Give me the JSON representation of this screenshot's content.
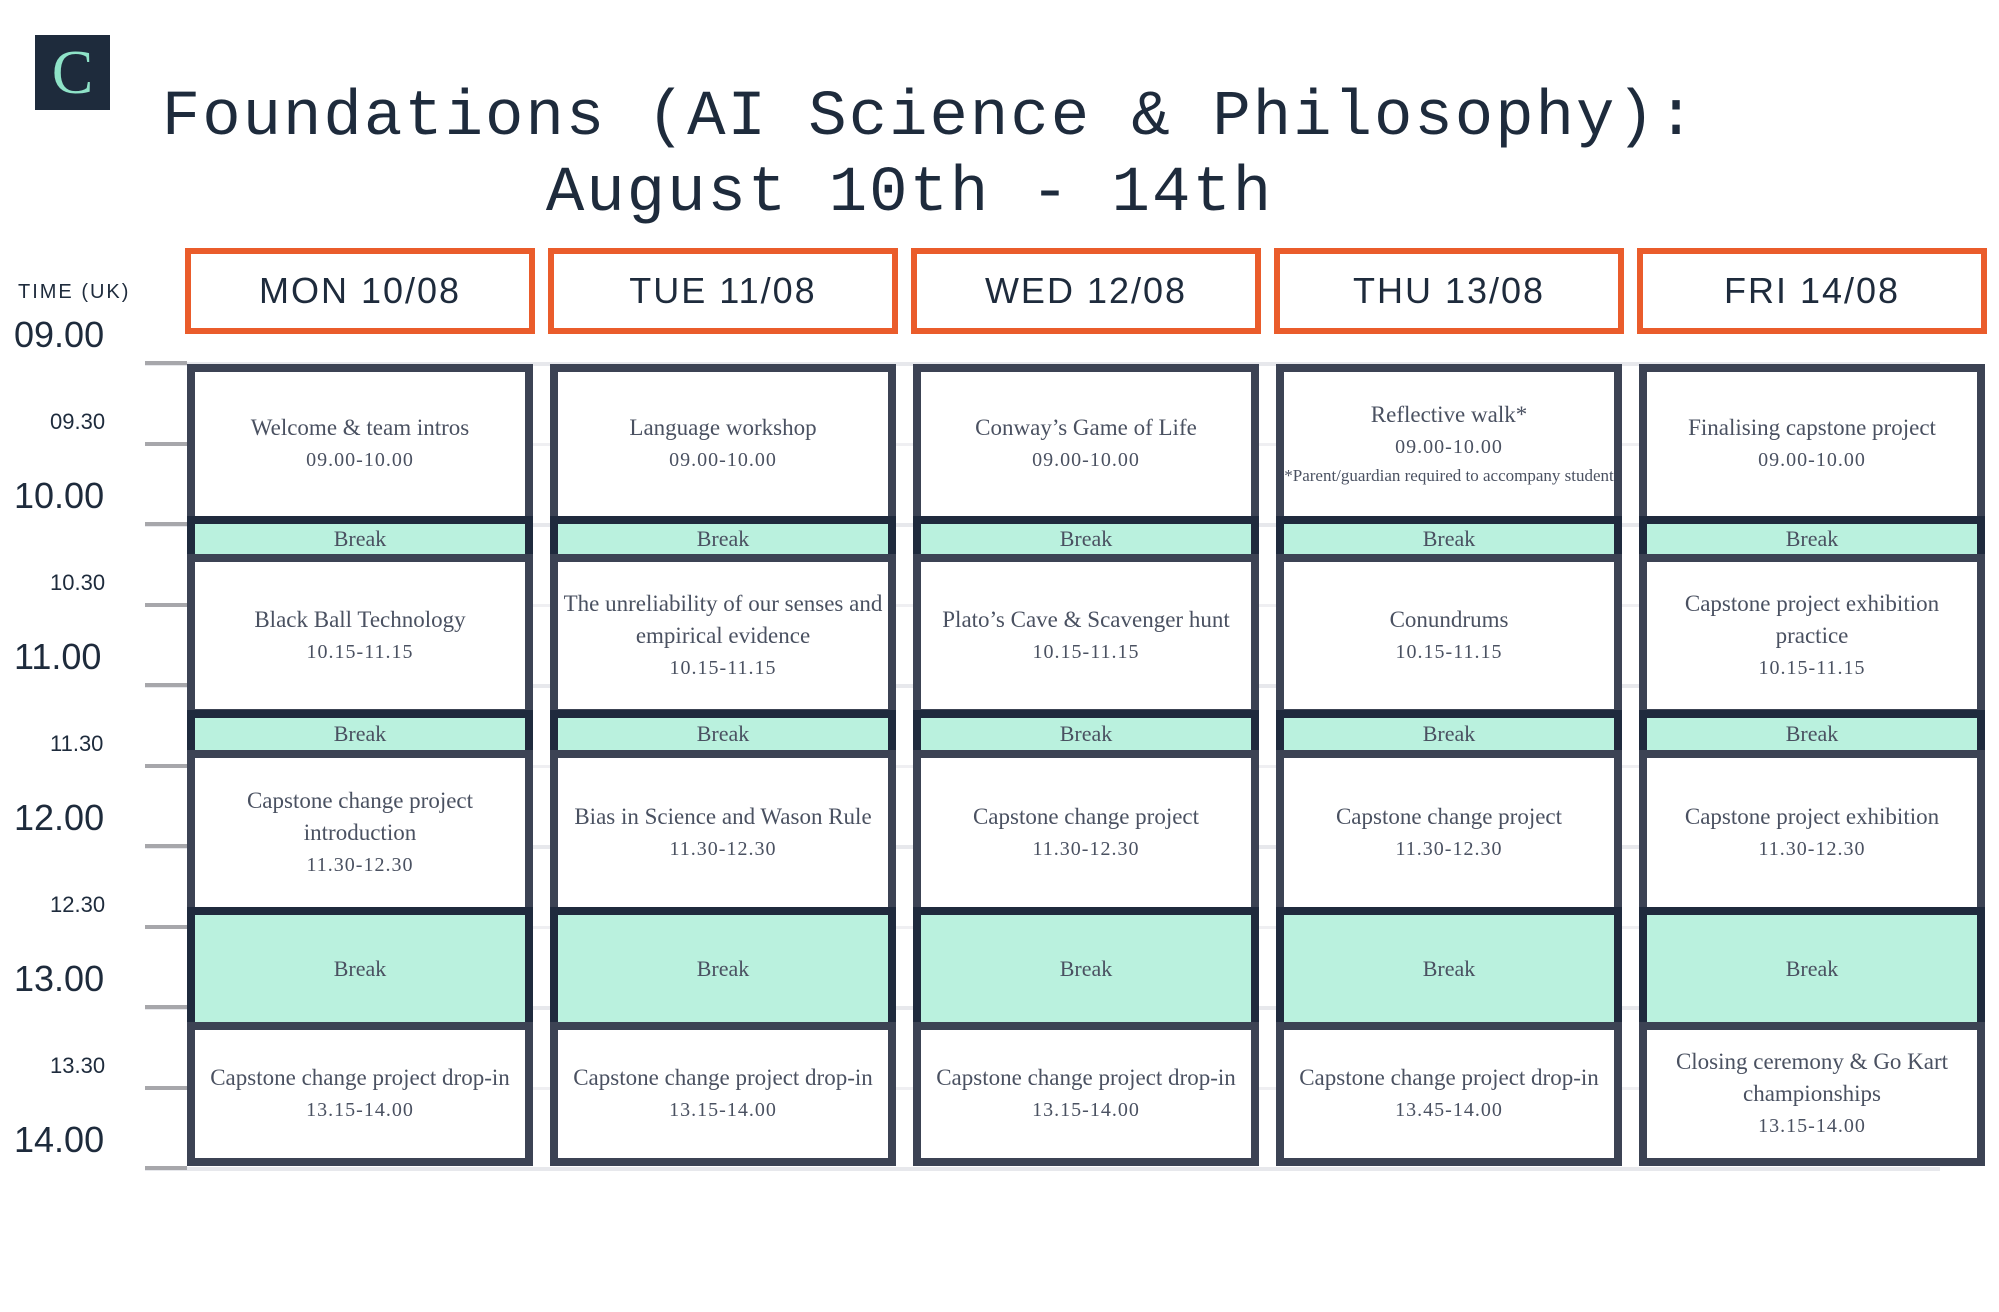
{
  "logo": {
    "letter": "C"
  },
  "title": {
    "line1": "Foundations (AI Science & Philosophy):",
    "line2": "August 10th - 14th"
  },
  "time_header": "TIME (UK)",
  "time_labels": [
    "09.00",
    "09.30",
    "10.00",
    "10.30",
    "11.00",
    "11.30",
    "12.00",
    "12.30",
    "13.00",
    "13.30",
    "14.00"
  ],
  "colors": {
    "header_border": "#ea5c2b",
    "slot_border": "#3c4354",
    "break_fill": "#baf1de",
    "logo_bg": "#1e2b3c"
  },
  "days": [
    {
      "label": "MON 10/08",
      "slots": [
        {
          "name": "Welcome & team intros",
          "time": "09.00-10.00"
        },
        {
          "name": "Break",
          "break": true
        },
        {
          "name": "Black Ball Technology",
          "time": "10.15-11.15"
        },
        {
          "name": "Break",
          "break": true
        },
        {
          "name": "Capstone change project introduction",
          "time": "11.30-12.30"
        },
        {
          "name": "Break",
          "break": true
        },
        {
          "name": "Capstone change project drop-in",
          "time": "13.15-14.00"
        }
      ]
    },
    {
      "label": "TUE 11/08",
      "slots": [
        {
          "name": "Language workshop",
          "time": "09.00-10.00"
        },
        {
          "name": "Break",
          "break": true
        },
        {
          "name": "The unreliability of our senses and empirical evidence",
          "time": "10.15-11.15"
        },
        {
          "name": "Break",
          "break": true
        },
        {
          "name": "Bias in Science and Wason Rule",
          "time": "11.30-12.30"
        },
        {
          "name": "Break",
          "break": true
        },
        {
          "name": "Capstone change project drop-in",
          "time": "13.15-14.00"
        }
      ]
    },
    {
      "label": "WED 12/08",
      "slots": [
        {
          "name": "Conway’s Game of Life",
          "time": "09.00-10.00"
        },
        {
          "name": "Break",
          "break": true
        },
        {
          "name": "Plato’s Cave & Scavenger hunt",
          "time": "10.15-11.15"
        },
        {
          "name": "Break",
          "break": true
        },
        {
          "name": "Capstone change project",
          "time": "11.30-12.30"
        },
        {
          "name": "Break",
          "break": true
        },
        {
          "name": "Capstone change project drop-in",
          "time": "13.15-14.00"
        }
      ]
    },
    {
      "label": "THU 13/08",
      "slots": [
        {
          "name": "Reflective walk*",
          "time": "09.00-10.00",
          "note": "*Parent/guardian required to accompany student"
        },
        {
          "name": "Break",
          "break": true
        },
        {
          "name": "Conundrums",
          "time": "10.15-11.15"
        },
        {
          "name": "Break",
          "break": true
        },
        {
          "name": "Capstone change project",
          "time": "11.30-12.30"
        },
        {
          "name": "Break",
          "break": true
        },
        {
          "name": "Capstone change project drop-in",
          "time": "13.45-14.00"
        }
      ]
    },
    {
      "label": "FRI 14/08",
      "slots": [
        {
          "name": "Finalising capstone project",
          "time": "09.00-10.00"
        },
        {
          "name": "Break",
          "break": true
        },
        {
          "name": "Capstone project exhibition practice",
          "time": "10.15-11.15"
        },
        {
          "name": "Break",
          "break": true
        },
        {
          "name": "Capstone project exhibition",
          "time": "11.30-12.30"
        },
        {
          "name": "Break",
          "break": true
        },
        {
          "name": "Closing ceremony & Go Kart championships",
          "time": "13.15-14.00"
        }
      ]
    }
  ]
}
